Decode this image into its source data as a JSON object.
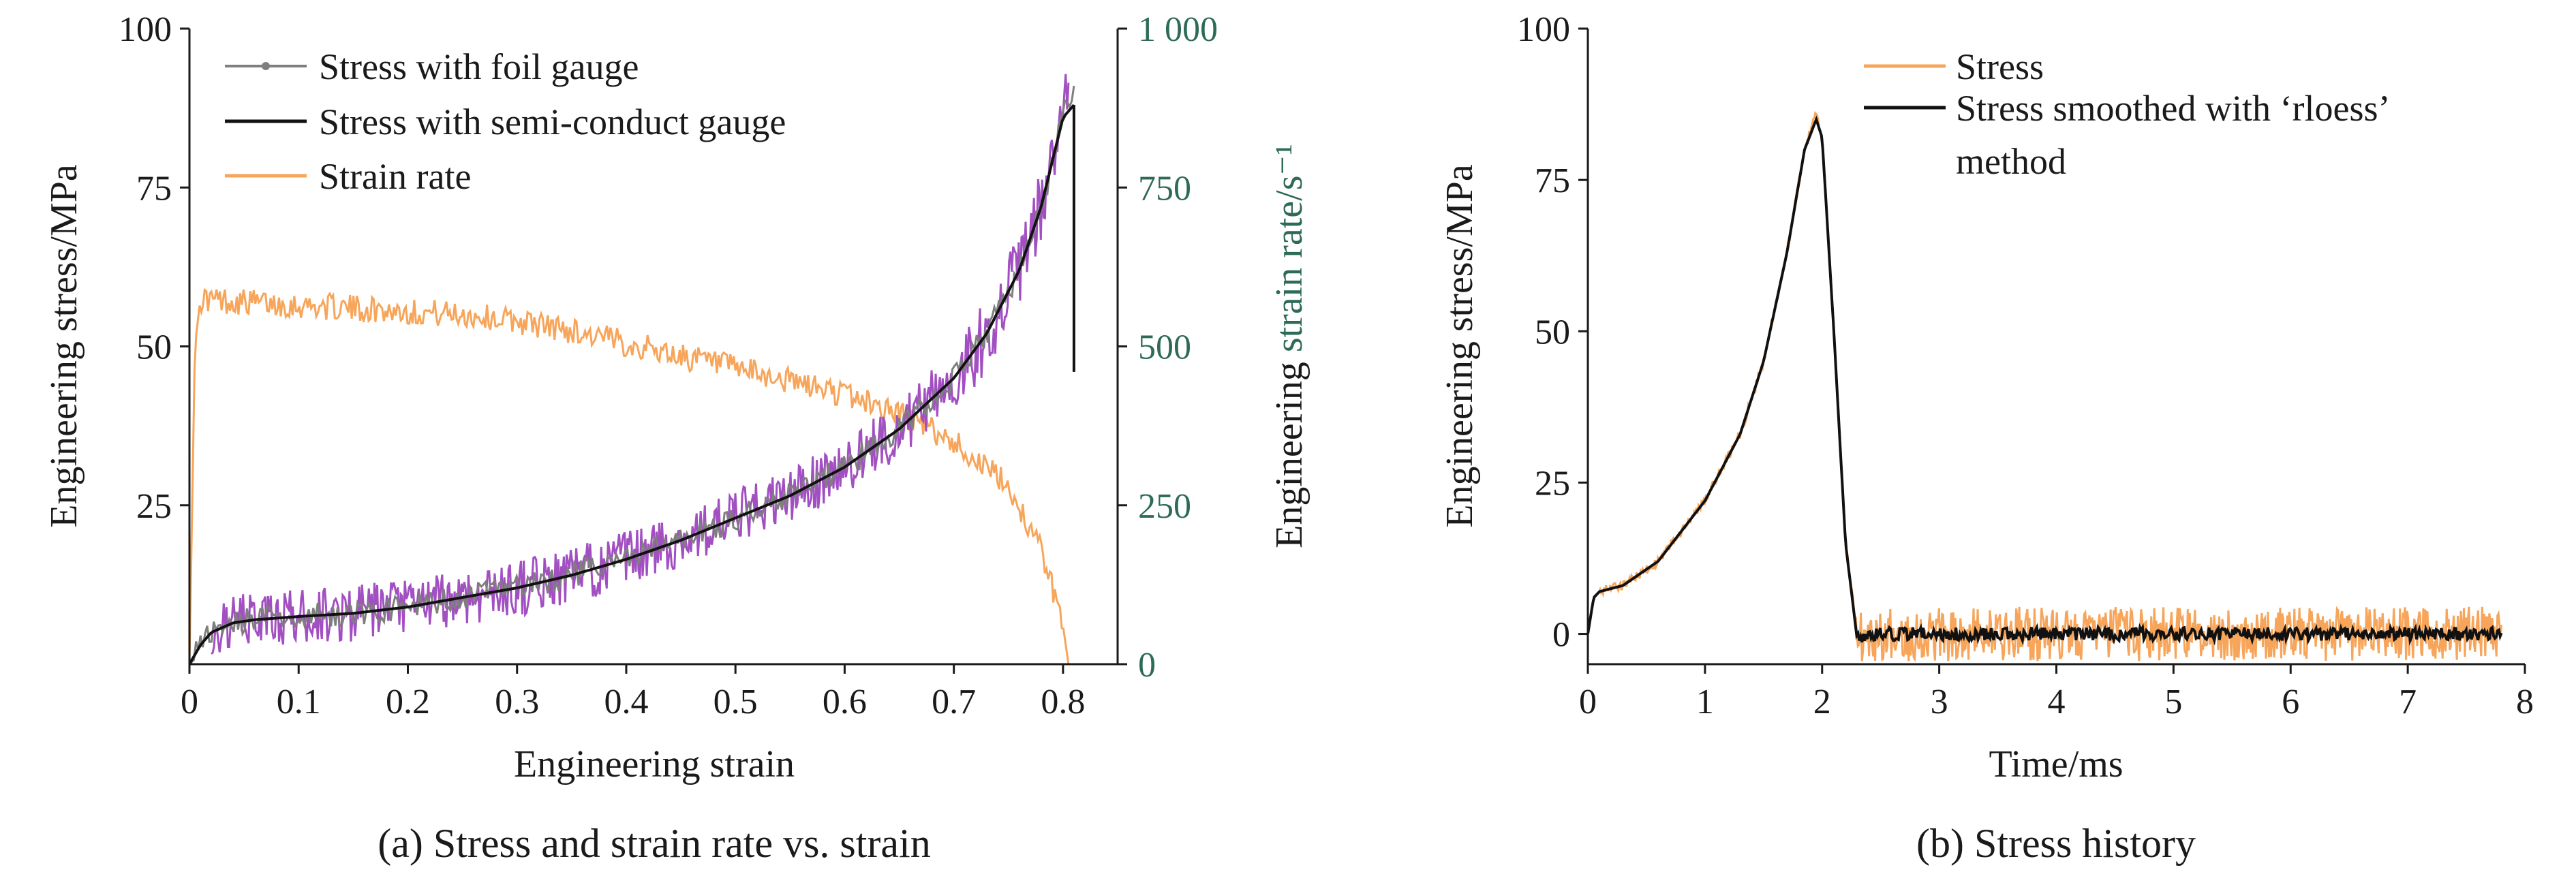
{
  "colors": {
    "axis": "#1a1a1a",
    "foil": "#7f7f7f",
    "semi": "#111111",
    "rate": "#f7a55a",
    "raw": "#a24fc2",
    "right_axis": "#2e6b57"
  },
  "chart_data": [
    {
      "type": "line",
      "caption": "(a) Stress and strain rate vs. strain",
      "xlabel": "Engineering strain",
      "ylabel": "Engineering stress/MPa",
      "y2label_prefix": "Engineering ",
      "y2label_suffix": "strain rate/s⁻¹",
      "xlim": [
        0,
        0.85
      ],
      "ylim": [
        0,
        100
      ],
      "y2lim": [
        0,
        1000
      ],
      "xticks": [
        0,
        0.1,
        0.2,
        0.3,
        0.4,
        0.5,
        0.6,
        0.7,
        0.8
      ],
      "xtick_labels": [
        "0",
        "0.1",
        "0.2",
        "0.3",
        "0.4",
        "0.5",
        "0.6",
        "0.7",
        "0.8"
      ],
      "yticks": [
        25,
        50,
        75,
        100
      ],
      "ytick_labels": [
        "25",
        "50",
        "75",
        "100"
      ],
      "y2ticks": [
        0,
        250,
        500,
        750,
        1000
      ],
      "y2tick_labels": [
        "0",
        "250",
        "500",
        "750",
        "1 000"
      ],
      "legend": "top-left",
      "grid": false,
      "series": [
        {
          "name": "Stress with foil gauge",
          "axis": "left",
          "x": [
            0,
            0.01,
            0.02,
            0.04,
            0.06,
            0.1,
            0.15,
            0.2,
            0.25,
            0.3,
            0.35,
            0.4,
            0.45,
            0.5,
            0.55,
            0.6,
            0.65,
            0.7,
            0.73,
            0.76,
            0.78,
            0.8,
            0.81
          ],
          "y": [
            0,
            3,
            5,
            6.5,
            7,
            7.5,
            8,
            9,
            10.5,
            12,
            14,
            16.5,
            19.5,
            23,
            26.5,
            31,
            37,
            45,
            52,
            62,
            72,
            86,
            90
          ]
        },
        {
          "name": "Stress with semi-conduct gauge",
          "axis": "left",
          "x": [
            0,
            0.01,
            0.02,
            0.04,
            0.06,
            0.1,
            0.15,
            0.2,
            0.25,
            0.3,
            0.35,
            0.4,
            0.45,
            0.5,
            0.55,
            0.6,
            0.65,
            0.7,
            0.73,
            0.76,
            0.78,
            0.8,
            0.81
          ],
          "y": [
            0,
            3,
            5,
            6.5,
            7,
            7.5,
            8,
            9,
            10.5,
            12,
            14,
            16.5,
            19.5,
            23,
            26.5,
            31,
            37,
            45,
            52,
            62,
            72,
            86,
            88
          ]
        },
        {
          "name": "Strain rate",
          "axis": "right",
          "x": [
            0,
            0.005,
            0.01,
            0.05,
            0.1,
            0.15,
            0.2,
            0.25,
            0.3,
            0.35,
            0.4,
            0.45,
            0.5,
            0.55,
            0.6,
            0.65,
            0.7,
            0.75,
            0.78,
            0.8,
            0.805
          ],
          "y": [
            0,
            500,
            575,
            570,
            565,
            560,
            555,
            550,
            540,
            525,
            505,
            485,
            465,
            445,
            425,
            395,
            350,
            280,
            180,
            60,
            0
          ]
        }
      ]
    },
    {
      "type": "line",
      "caption": "(b) Stress history",
      "xlabel": "Time/ms",
      "ylabel": "Engineering stress/MPa",
      "xlim": [
        0,
        8
      ],
      "ylim": [
        -5,
        100
      ],
      "xticks": [
        0,
        1,
        2,
        3,
        4,
        5,
        6,
        7,
        8
      ],
      "xtick_labels": [
        "0",
        "1",
        "2",
        "3",
        "4",
        "5",
        "6",
        "7",
        "8"
      ],
      "yticks": [
        0,
        25,
        50,
        75,
        100
      ],
      "ytick_labels": [
        "0",
        "25",
        "50",
        "75",
        "100"
      ],
      "legend": "top-right",
      "grid": false,
      "series": [
        {
          "name": "Stress",
          "x": [
            0,
            0.05,
            0.1,
            0.3,
            0.6,
            1.0,
            1.3,
            1.5,
            1.7,
            1.85,
            1.95,
            2.0,
            2.1,
            2.2,
            2.3,
            2.5,
            3,
            4,
            5,
            6,
            7,
            7.8
          ],
          "y": [
            0,
            6,
            7,
            8,
            12,
            22,
            33,
            45,
            63,
            80,
            86,
            82,
            50,
            15,
            0,
            0,
            0,
            0,
            0,
            0,
            0,
            0
          ]
        },
        {
          "name": "Stress smoothed with ‘rloess’",
          "name_line2": "method",
          "x": [
            0,
            0.05,
            0.1,
            0.3,
            0.6,
            1.0,
            1.3,
            1.5,
            1.7,
            1.85,
            1.95,
            2.0,
            2.1,
            2.2,
            2.3,
            2.5,
            3,
            4,
            5,
            6,
            7,
            7.8
          ],
          "y": [
            0,
            6,
            7,
            8,
            12,
            22,
            33,
            45,
            63,
            80,
            85,
            82,
            50,
            15,
            -1,
            0,
            0,
            0,
            0,
            0,
            0,
            0
          ]
        }
      ]
    }
  ]
}
